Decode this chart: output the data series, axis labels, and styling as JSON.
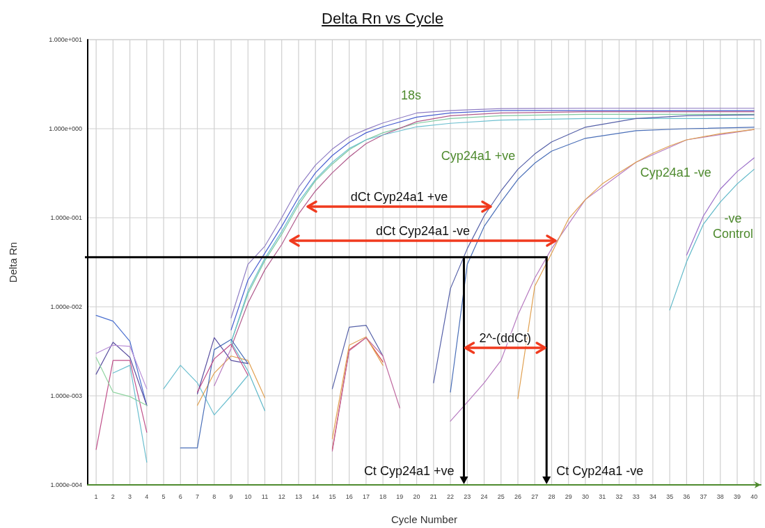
{
  "chart_data": {
    "type": "line",
    "title": "Delta Rn vs Cycle",
    "xlabel": "Cycle Number",
    "ylabel": "Delta Rn",
    "log": "y",
    "grid": true,
    "marker": "none",
    "xlim": [
      0.5,
      40.4
    ],
    "xticks": [
      1,
      2,
      3,
      4,
      5,
      6,
      7,
      8,
      9,
      10,
      11,
      12,
      13,
      14,
      15,
      16,
      17,
      18,
      19,
      20,
      21,
      22,
      23,
      24,
      25,
      26,
      27,
      28,
      29,
      30,
      31,
      32,
      33,
      34,
      35,
      36,
      37,
      38,
      39,
      40
    ],
    "ylim": [
      0.0001,
      10
    ],
    "yticks": [
      {
        "value": 0.0001,
        "label": "1.000e-004"
      },
      {
        "value": 0.001,
        "label": "1.000e-003"
      },
      {
        "value": 0.01,
        "label": "1.000e-002"
      },
      {
        "value": 0.1,
        "label": "1.000e-001"
      },
      {
        "value": 1,
        "label": "1.000e+000"
      },
      {
        "value": 10,
        "label": "1.000e+001"
      }
    ],
    "series": [
      {
        "name": "18s",
        "color": "#8e7cc3",
        "x": [
          9,
          10,
          11,
          12,
          13,
          14,
          15,
          16,
          17,
          18,
          20,
          22,
          25,
          30,
          35,
          40
        ],
        "values": [
          0.0075,
          0.03,
          0.048,
          0.1,
          0.22,
          0.39,
          0.59,
          0.81,
          0.98,
          1.16,
          1.5,
          1.6,
          1.68,
          1.7,
          1.7,
          1.7
        ]
      },
      {
        "color": "#4a5fd0",
        "x": [
          9,
          10,
          11,
          12,
          13,
          14,
          15,
          16,
          17,
          18,
          20,
          22,
          25,
          30,
          35,
          40
        ],
        "values": [
          0.0055,
          0.02,
          0.04,
          0.08,
          0.17,
          0.32,
          0.5,
          0.7,
          0.9,
          1.05,
          1.35,
          1.5,
          1.6,
          1.6,
          1.6,
          1.6
        ]
      },
      {
        "color": "#7fc9a0",
        "x": [
          9,
          10,
          11,
          12,
          13,
          14,
          15,
          16,
          17,
          18,
          20,
          22,
          25,
          30,
          35,
          40
        ],
        "values": [
          0.004,
          0.014,
          0.033,
          0.065,
          0.14,
          0.26,
          0.4,
          0.58,
          0.75,
          0.9,
          1.15,
          1.3,
          1.4,
          1.45,
          1.45,
          1.45
        ]
      },
      {
        "color": "#b05a8c",
        "x": [
          9,
          10,
          11,
          12,
          13,
          14,
          15,
          16,
          17,
          18,
          20,
          22,
          25,
          30,
          35,
          40
        ],
        "values": [
          0.0035,
          0.011,
          0.026,
          0.05,
          0.11,
          0.2,
          0.32,
          0.48,
          0.68,
          0.85,
          1.2,
          1.4,
          1.5,
          1.55,
          1.55,
          1.55
        ]
      },
      {
        "color": "#6bbfcf",
        "x": [
          9,
          10,
          11,
          12,
          13,
          14,
          15,
          16,
          17,
          18,
          20,
          22,
          25,
          30,
          35,
          40
        ],
        "values": [
          0.004,
          0.015,
          0.035,
          0.07,
          0.15,
          0.27,
          0.42,
          0.6,
          0.75,
          0.85,
          1.05,
          1.15,
          1.25,
          1.3,
          1.3,
          1.3
        ]
      },
      {
        "name": "Cyp24a1 +ve",
        "color": "#5560a8",
        "x": [
          21,
          22,
          23,
          24,
          25,
          26,
          27,
          28,
          30,
          33,
          36,
          40
        ],
        "values": [
          0.0014,
          0.016,
          0.045,
          0.105,
          0.2,
          0.35,
          0.52,
          0.71,
          1.04,
          1.3,
          1.4,
          1.43
        ]
      },
      {
        "color": "#4a6fb8",
        "x": [
          22,
          23,
          24,
          25,
          26,
          27,
          28,
          30,
          33,
          36,
          40
        ],
        "values": [
          0.0011,
          0.03,
          0.08,
          0.15,
          0.27,
          0.41,
          0.56,
          0.78,
          0.95,
          1.0,
          1.04
        ]
      },
      {
        "color": "#b77bc0",
        "x": [
          22,
          23,
          24,
          25,
          26,
          27,
          28,
          30,
          33,
          36,
          40
        ],
        "values": [
          0.00052,
          0.00085,
          0.0014,
          0.0025,
          0.0081,
          0.021,
          0.045,
          0.16,
          0.42,
          0.75,
          0.98
        ]
      },
      {
        "name": "Cyp24a1 -ve",
        "color": "#e0a050",
        "x": [
          26,
          27,
          28,
          29,
          30,
          31,
          32,
          33,
          34,
          35,
          36,
          38,
          40
        ],
        "values": [
          0.00093,
          0.017,
          0.04,
          0.097,
          0.16,
          0.24,
          0.32,
          0.42,
          0.53,
          0.64,
          0.75,
          0.88,
          0.98
        ]
      },
      {
        "color": "#9b6fc9",
        "x": [
          36,
          37,
          38,
          39,
          40
        ],
        "values": [
          0.038,
          0.105,
          0.21,
          0.33,
          0.47
        ]
      },
      {
        "name": "-ve\nControl",
        "color": "#5fb8c8",
        "x": [
          35,
          36,
          37,
          38,
          39,
          40
        ],
        "values": [
          0.0092,
          0.032,
          0.085,
          0.15,
          0.24,
          0.35
        ]
      },
      {
        "color": "#4a6fd0",
        "x": [
          1,
          2,
          3,
          4
        ],
        "values": [
          0.008,
          0.0069,
          0.0041,
          0.00078
        ]
      },
      {
        "color": "#5a4fa0",
        "x": [
          1,
          2,
          3,
          4
        ],
        "values": [
          0.00175,
          0.004,
          0.0027,
          0.00078
        ]
      },
      {
        "color": "#b78bd6",
        "x": [
          1,
          2,
          3,
          4
        ],
        "values": [
          0.003,
          0.0037,
          0.0036,
          0.0012
        ]
      },
      {
        "color": "#c0508a",
        "x": [
          1,
          2,
          3,
          4
        ],
        "values": [
          0.00025,
          0.0025,
          0.0025,
          0.00039
        ]
      },
      {
        "color": "#8fd4a0",
        "x": [
          1,
          2,
          3,
          4
        ],
        "values": [
          0.0027,
          0.0011,
          0.00098,
          0.00078
        ]
      },
      {
        "color": "#6bbfcf",
        "x": [
          2,
          3,
          4
        ],
        "values": [
          0.0018,
          0.0022,
          0.00018
        ]
      },
      {
        "color": "#6bbfcf",
        "x": [
          5,
          6,
          7,
          8,
          9,
          10
        ],
        "values": [
          0.0012,
          0.0022,
          0.0014,
          0.00061,
          0.001,
          0.0017
        ]
      },
      {
        "color": "#5fb8c8",
        "x": [
          9,
          10,
          11
        ],
        "values": [
          0.004,
          0.0019,
          0.00068
        ]
      },
      {
        "color": "#e0a050",
        "x": [
          7,
          8,
          9,
          10,
          11
        ],
        "values": [
          0.00078,
          0.0018,
          0.0028,
          0.0025,
          0.00095
        ]
      },
      {
        "color": "#4a6fb8",
        "x": [
          6,
          7,
          8,
          9,
          10
        ],
        "values": [
          0.00026,
          0.00026,
          0.0033,
          0.0043,
          0.0023
        ]
      },
      {
        "color": "#5a4fa0",
        "x": [
          7,
          8,
          9,
          10
        ],
        "values": [
          0.00105,
          0.0045,
          0.0025,
          0.0023
        ]
      },
      {
        "color": "#c0508a",
        "x": [
          7,
          8,
          9,
          10
        ],
        "values": [
          0.0011,
          0.0026,
          0.0038,
          0.0017
        ]
      },
      {
        "color": "#b77bc0",
        "x": [
          8,
          9
        ],
        "values": [
          0.0013,
          0.0034
        ]
      },
      {
        "color": "#5560a8",
        "x": [
          15,
          16,
          17,
          18
        ],
        "values": [
          0.0012,
          0.0059,
          0.0062,
          0.0028
        ]
      },
      {
        "color": "#d9453a",
        "x": [
          15,
          16,
          17,
          18
        ],
        "values": [
          0.00025,
          0.0033,
          0.0045,
          0.0024
        ]
      },
      {
        "color": "#e0a050",
        "x": [
          15,
          16,
          17,
          18
        ],
        "values": [
          0.00033,
          0.0037,
          0.0046,
          0.0022
        ]
      },
      {
        "color": "#c06aa0",
        "x": [
          15,
          16,
          17,
          18,
          19
        ],
        "values": [
          0.00024,
          0.0032,
          0.0045,
          0.0028,
          0.00073
        ]
      }
    ],
    "ref_lines": [
      {
        "axis": "y",
        "value": 0.036,
        "color": "#000000"
      },
      {
        "axis": "x",
        "value": 22.8,
        "label": "Ct Cyp24a1 +ve",
        "color": "#000000"
      },
      {
        "axis": "x",
        "value": 27.7,
        "label": "Ct Cyp24a1 -ve",
        "color": "#000000"
      }
    ],
    "annotations": [
      "dCt Cyp24a1 +ve",
      "dCt Cyp24a1 -ve",
      "2^-(ddCt)"
    ]
  }
}
